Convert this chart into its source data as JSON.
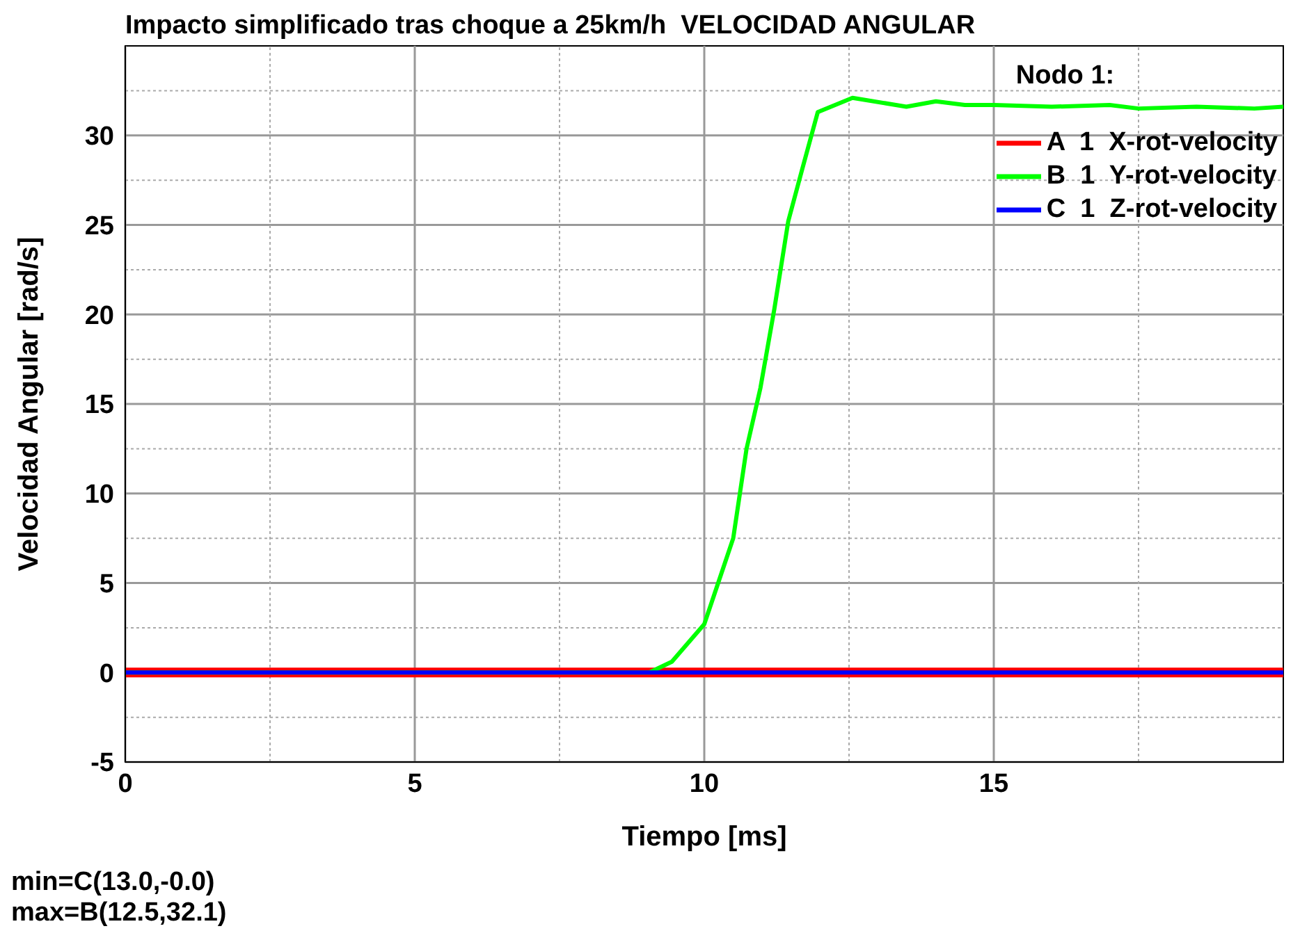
{
  "chart_data": {
    "type": "line",
    "title": "Impacto simplificado tras choque a 25km/h  VELOCIDAD ANGULAR",
    "xlabel": "Tiempo [ms]",
    "ylabel": "Velocidad Angular [rad/s]",
    "legend_title": "Nodo 1:",
    "legend": "top right",
    "grid": true,
    "marker": "none",
    "line_style": "solid",
    "xlim": [
      0,
      20
    ],
    "xticks": [
      0,
      {
        "value": 2.5,
        "label": null
      },
      5,
      {
        "value": 7.5,
        "label": null
      },
      10,
      {
        "value": 12.5,
        "label": null
      },
      15,
      {
        "value": 17.5,
        "label": null
      }
    ],
    "ylim": [
      -5,
      35
    ],
    "yticks": [
      -5,
      {
        "value": -2.5,
        "label": null
      },
      0,
      {
        "value": 2.5,
        "label": null
      },
      5,
      {
        "value": 7.5,
        "label": null
      },
      10,
      {
        "value": 12.5,
        "label": null
      },
      15,
      {
        "value": 17.5,
        "label": null
      },
      20,
      {
        "value": 22.5,
        "label": null
      },
      25,
      {
        "value": 27.5,
        "label": null
      },
      30,
      {
        "value": 32.5,
        "label": null
      }
    ],
    "series": [
      {
        "name": "A  1  X-rot-velocity",
        "color": "#ff0000",
        "x": [
          0,
          20
        ],
        "values": [
          0,
          0
        ]
      },
      {
        "name": "B  1  Y-rot-velocity",
        "color": "#00ff00",
        "x": [
          0,
          9.05,
          9.44,
          10.0,
          10.25,
          10.5,
          10.73,
          10.97,
          11.21,
          11.45,
          11.69,
          11.96,
          12.56,
          13.49,
          14.0,
          14.5,
          15,
          16,
          17,
          17.5,
          18.5,
          19.5,
          20
        ],
        "values": [
          0,
          0,
          0.6,
          2.7,
          5.1,
          7.5,
          12.5,
          15.9,
          20.3,
          25.2,
          28.1,
          31.3,
          32.1,
          31.6,
          31.9,
          31.7,
          31.7,
          31.6,
          31.7,
          31.5,
          31.6,
          31.5,
          31.6
        ]
      },
      {
        "name": "C  1  Z-rot-velocity",
        "color": "#0000ff",
        "x": [
          0,
          20
        ],
        "values": [
          0,
          0
        ]
      }
    ],
    "annotations": [
      "min=C(13.0,-0.0)",
      "max=B(12.5,32.1)"
    ]
  }
}
